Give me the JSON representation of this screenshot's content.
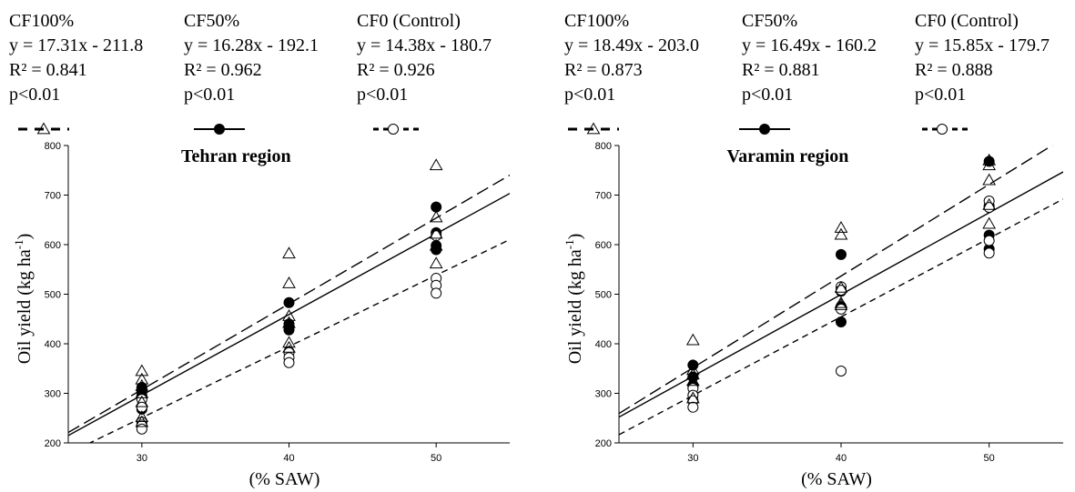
{
  "colors": {
    "ink": "#000000",
    "background": "#ffffff"
  },
  "chart_data": [
    {
      "type": "scatter",
      "title": "Tehran region",
      "xlabel": "(% SAW)",
      "ylabel": "Oil yield (kg ha",
      "ylabel_sup": "-1",
      "ylabel_tail": ")",
      "xlim": [
        25,
        55
      ],
      "ylim": [
        200,
        800
      ],
      "xticks": [
        30,
        40,
        50
      ],
      "yticks": [
        200,
        300,
        400,
        500,
        600,
        700,
        800
      ],
      "grid": false,
      "series": [
        {
          "name": "CF100%",
          "equation": "y = 17.31x - 211.8",
          "r2": "R² = 0.841",
          "p": "p<0.01",
          "marker": "triangle-open",
          "line": "long-dash",
          "slope": 17.31,
          "intercept": -211.8,
          "points": [
            [
              30,
              345
            ],
            [
              30,
              328
            ],
            [
              30,
              315
            ],
            [
              30,
              300
            ],
            [
              30,
              282
            ],
            [
              30,
              252
            ],
            [
              30,
              242
            ],
            [
              40,
              582
            ],
            [
              40,
              522
            ],
            [
              40,
              456
            ],
            [
              40,
              442
            ],
            [
              40,
              402
            ],
            [
              40,
              392
            ],
            [
              50,
              760
            ],
            [
              50,
              655
            ],
            [
              50,
              622
            ],
            [
              50,
              598
            ],
            [
              50,
              562
            ]
          ]
        },
        {
          "name": "CF50%",
          "equation": "y = 16.28x - 192.1",
          "r2": "R² = 0.962",
          "p": "p<0.01",
          "marker": "circle-filled",
          "line": "solid",
          "slope": 16.28,
          "intercept": -192.1,
          "points": [
            [
              30,
              312
            ],
            [
              30,
              303
            ],
            [
              30,
              295
            ],
            [
              30,
              268
            ],
            [
              40,
              483
            ],
            [
              40,
              440
            ],
            [
              40,
              433
            ],
            [
              40,
              428
            ],
            [
              50,
              676
            ],
            [
              50,
              624
            ],
            [
              50,
              598
            ],
            [
              50,
              590
            ]
          ]
        },
        {
          "name": "CF0 (Control)",
          "equation": "y = 14.38x - 180.7",
          "r2": "R² = 0.926",
          "p": "p<0.01",
          "marker": "circle-open",
          "line": "short-dash",
          "slope": 14.38,
          "intercept": -180.7,
          "points": [
            [
              30,
              288
            ],
            [
              30,
              272
            ],
            [
              30,
              242
            ],
            [
              30,
              236
            ],
            [
              30,
              228
            ],
            [
              40,
              382
            ],
            [
              40,
              372
            ],
            [
              40,
              362
            ],
            [
              50,
              618
            ],
            [
              50,
              532
            ],
            [
              50,
              518
            ],
            [
              50,
              502
            ]
          ]
        }
      ]
    },
    {
      "type": "scatter",
      "title": "Varamin region",
      "xlabel": "(% SAW)",
      "ylabel": "Oil yield (kg ha",
      "ylabel_sup": "-1",
      "ylabel_tail": ")",
      "xlim": [
        25,
        55
      ],
      "ylim": [
        200,
        800
      ],
      "xticks": [
        30,
        40,
        50
      ],
      "yticks": [
        200,
        300,
        400,
        500,
        600,
        700,
        800
      ],
      "grid": false,
      "series": [
        {
          "name": "CF100%",
          "equation": "y = 18.49x - 203.0",
          "r2": "R² = 0.873",
          "p": "p<0.01",
          "marker": "triangle-open",
          "line": "long-dash",
          "slope": 18.49,
          "intercept": -203.0,
          "points": [
            [
              30,
              407
            ],
            [
              30,
              347
            ],
            [
              30,
              338
            ],
            [
              30,
              325
            ],
            [
              30,
              290
            ],
            [
              40,
              634
            ],
            [
              40,
              620
            ],
            [
              40,
              513
            ],
            [
              40,
              482
            ],
            [
              40,
              478
            ],
            [
              50,
              770
            ],
            [
              50,
              760
            ],
            [
              50,
              730
            ],
            [
              50,
              680
            ],
            [
              50,
              642
            ]
          ]
        },
        {
          "name": "CF50%",
          "equation": "y = 16.49x - 160.2",
          "r2": "R² = 0.881",
          "p": "p<0.01",
          "marker": "circle-filled",
          "line": "solid",
          "slope": 16.49,
          "intercept": -160.2,
          "points": [
            [
              30,
              357
            ],
            [
              30,
              333
            ],
            [
              30,
              315
            ],
            [
              40,
              580
            ],
            [
              40,
              506
            ],
            [
              40,
              475
            ],
            [
              40,
              444
            ],
            [
              50,
              768
            ],
            [
              50,
              678
            ],
            [
              50,
              619
            ],
            [
              50,
              591
            ]
          ]
        },
        {
          "name": "CF0 (Control)",
          "equation": "y = 15.85x - 179.7",
          "r2": "R² = 0.888",
          "p": "p<0.01",
          "marker": "circle-open",
          "line": "short-dash",
          "slope": 15.85,
          "intercept": -179.7,
          "points": [
            [
              30,
              310
            ],
            [
              30,
              296
            ],
            [
              30,
              285
            ],
            [
              30,
              272
            ],
            [
              40,
              515
            ],
            [
              40,
              508
            ],
            [
              40,
              470
            ],
            [
              40,
              345
            ],
            [
              50,
              688
            ],
            [
              50,
              675
            ],
            [
              50,
              608
            ],
            [
              50,
              583
            ]
          ]
        }
      ]
    }
  ]
}
